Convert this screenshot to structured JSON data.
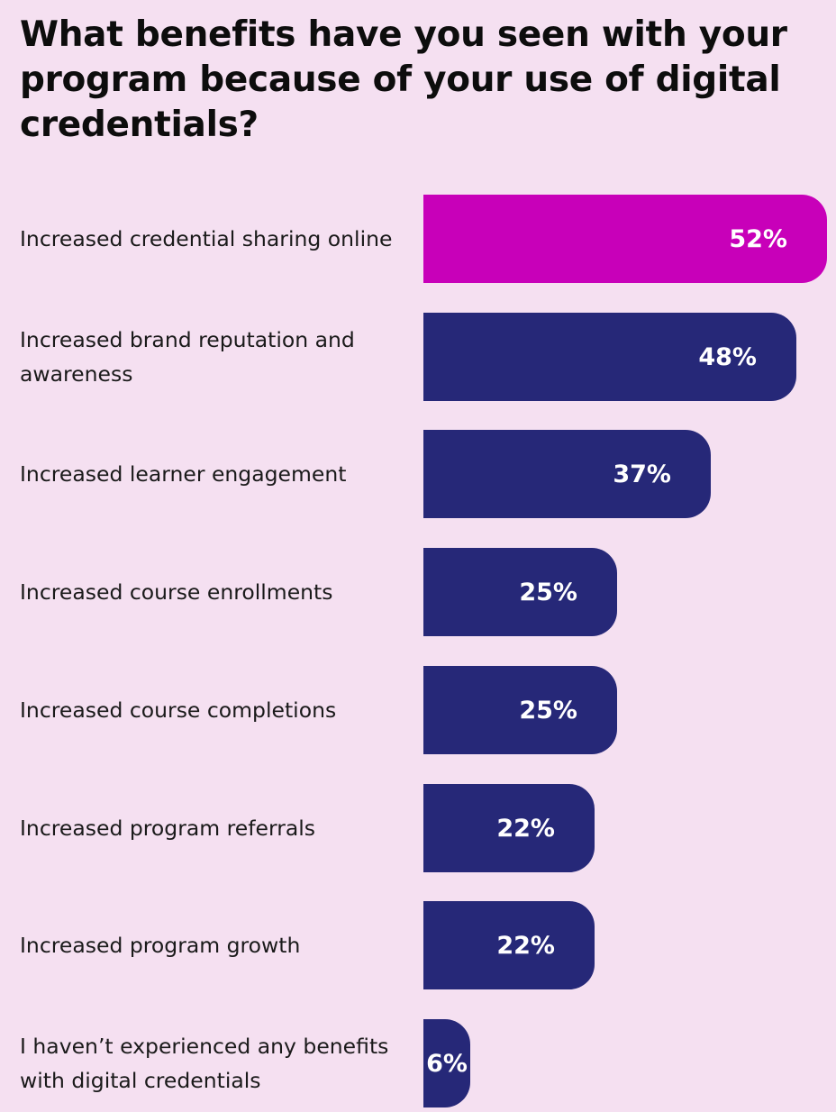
{
  "chart_data": {
    "type": "bar",
    "orientation": "horizontal",
    "title": "What benefits have you seen with your program because of your use of digital credentials?",
    "categories": [
      "Increased credential sharing online",
      "Increased brand reputation and awareness",
      "Increased learner engagement",
      "Increased course enrollments",
      "Increased course completions",
      "Increased program referrals",
      "Increased program growth",
      "I haven’t experienced any benefits with digital credentials"
    ],
    "values": [
      52,
      48,
      37,
      25,
      25,
      22,
      22,
      6
    ],
    "value_labels": [
      "52%",
      "48%",
      "37%",
      "25%",
      "25%",
      "22%",
      "22%",
      "6%"
    ],
    "unit": "%",
    "highlight_index": 0,
    "grid": false,
    "legend": "none"
  },
  "colors": {
    "background": "#f5e0f1",
    "bar": "#262878",
    "highlight": "#c800b9",
    "value_text": "#ffffff",
    "title_text": "#0d0d0d",
    "label_text": "#1a1a1a"
  }
}
